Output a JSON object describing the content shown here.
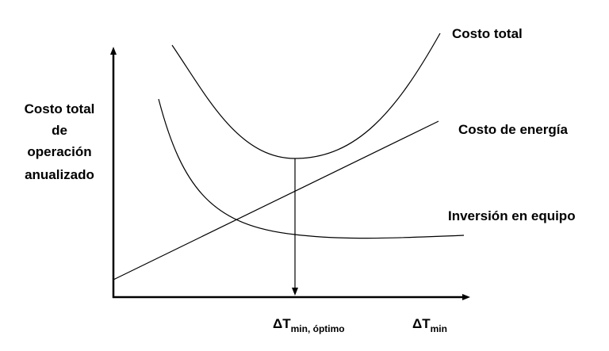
{
  "axes": {
    "y_label": [
      "Costo total",
      "de",
      "operación",
      "anualizado"
    ],
    "x_label": {
      "symbol": "ΔT",
      "subscript": "min"
    }
  },
  "marker": {
    "symbol": "ΔT",
    "subscript": "min, óptimo"
  },
  "curves": [
    {
      "label": "Costo total"
    },
    {
      "label": "Costo de energía"
    },
    {
      "label": "Inversión en equipo"
    }
  ]
}
